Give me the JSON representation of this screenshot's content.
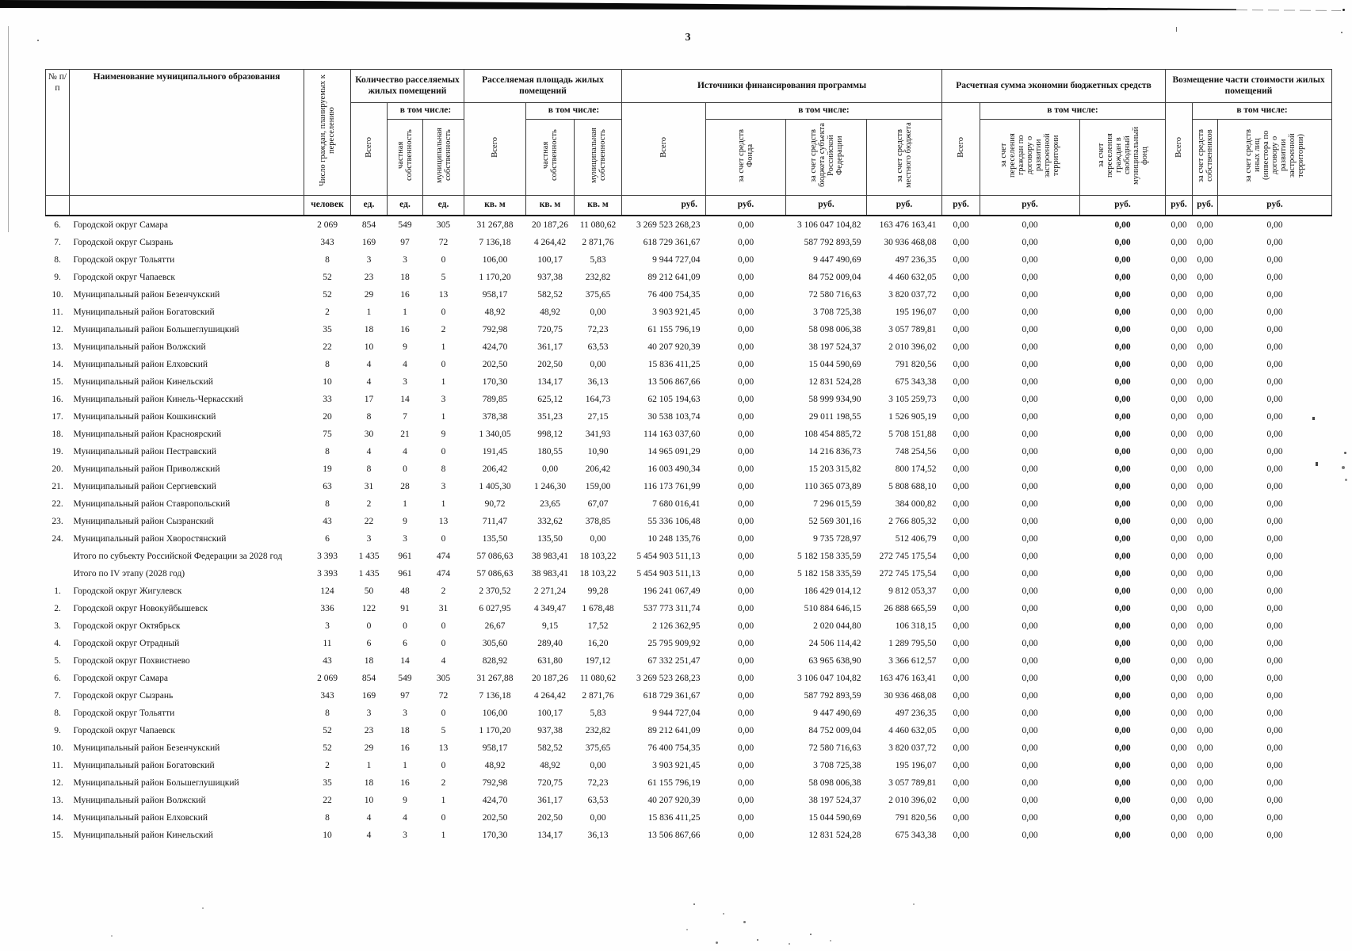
{
  "page": {
    "number": "3"
  },
  "table": {
    "header": {
      "num": "№ п/п",
      "name": "Наименование муниципального образования",
      "people": "Число граждан, планируемых к переселению",
      "incl": "в том числе:",
      "total": "Всего",
      "groups": {
        "units": {
          "label": "Количество расселяемых жилых помещений",
          "private": "частная собственность",
          "municipal": "муниципальная собственность"
        },
        "area": {
          "label": "Расселяемая площадь жилых помещений",
          "private": "частная собственность",
          "municipal": "муниципальная собственность"
        },
        "financing": {
          "label": "Источники финансирования программы",
          "fund": "за счет средств Фонда",
          "subject": "за счет средств бюджета субъекта Российской Федерации",
          "local": "за счет средств местного бюджета"
        },
        "savings": {
          "label": "Расчетная сумма экономии бюджетных средств",
          "contract": "за счет переселения граждан по договору о развитии застроенной территории",
          "free": "за счет переселения граждан в свободный муниципальный фонд"
        },
        "compensation": {
          "label": "Возмещение части стоимости жилых помещений",
          "owners": "за счет средств собственников",
          "others": "за счет средств иных лиц (инвестора по договору о развитии застроенной территории)"
        }
      },
      "units_row": [
        "человек",
        "ед.",
        "ед.",
        "ед.",
        "кв. м",
        "кв. м",
        "кв. м",
        "руб.",
        "руб.",
        "руб.",
        "руб.",
        "руб.",
        "руб.",
        "руб.",
        "руб.",
        "руб.",
        "руб."
      ]
    },
    "rows": [
      {
        "n": "6.",
        "name": "Городской округ Самара",
        "v": [
          "2 069",
          "854",
          "549",
          "305",
          "31 267,88",
          "20 187,26",
          "11 080,62",
          "3 269 523 268,23",
          "0,00",
          "3 106 047 104,82",
          "163 476 163,41",
          "0,00",
          "0,00",
          "0,00",
          "0,00",
          "0,00",
          "0,00"
        ]
      },
      {
        "n": "7.",
        "name": "Городской округ  Сызрань",
        "v": [
          "343",
          "169",
          "97",
          "72",
          "7 136,18",
          "4 264,42",
          "2 871,76",
          "618 729 361,67",
          "0,00",
          "587 792 893,59",
          "30 936 468,08",
          "0,00",
          "0,00",
          "0,00",
          "0,00",
          "0,00",
          "0,00"
        ]
      },
      {
        "n": "8.",
        "name": "Городской округ Тольятти",
        "v": [
          "8",
          "3",
          "3",
          "0",
          "106,00",
          "100,17",
          "5,83",
          "9 944 727,04",
          "0,00",
          "9 447 490,69",
          "497 236,35",
          "0,00",
          "0,00",
          "0,00",
          "0,00",
          "0,00",
          "0,00"
        ]
      },
      {
        "n": "9.",
        "name": "Городской округ  Чапаевск",
        "v": [
          "52",
          "23",
          "18",
          "5",
          "1 170,20",
          "937,38",
          "232,82",
          "89 212 641,09",
          "0,00",
          "84 752 009,04",
          "4 460 632,05",
          "0,00",
          "0,00",
          "0,00",
          "0,00",
          "0,00",
          "0,00"
        ]
      },
      {
        "n": "10.",
        "name": "Муниципальный район Безенчукский",
        "v": [
          "52",
          "29",
          "16",
          "13",
          "958,17",
          "582,52",
          "375,65",
          "76 400 754,35",
          "0,00",
          "72 580 716,63",
          "3 820 037,72",
          "0,00",
          "0,00",
          "0,00",
          "0,00",
          "0,00",
          "0,00"
        ]
      },
      {
        "n": "11.",
        "name": "Муниципальный район Богатовский",
        "v": [
          "2",
          "1",
          "1",
          "0",
          "48,92",
          "48,92",
          "0,00",
          "3 903 921,45",
          "0,00",
          "3 708 725,38",
          "195 196,07",
          "0,00",
          "0,00",
          "0,00",
          "0,00",
          "0,00",
          "0,00"
        ]
      },
      {
        "n": "12.",
        "name": "Муниципальный район Большеглушицкий",
        "v": [
          "35",
          "18",
          "16",
          "2",
          "792,98",
          "720,75",
          "72,23",
          "61 155 796,19",
          "0,00",
          "58 098 006,38",
          "3 057 789,81",
          "0,00",
          "0,00",
          "0,00",
          "0,00",
          "0,00",
          "0,00"
        ]
      },
      {
        "n": "13.",
        "name": "Муниципальный район Волжский",
        "v": [
          "22",
          "10",
          "9",
          "1",
          "424,70",
          "361,17",
          "63,53",
          "40 207 920,39",
          "0,00",
          "38 197 524,37",
          "2 010 396,02",
          "0,00",
          "0,00",
          "0,00",
          "0,00",
          "0,00",
          "0,00"
        ]
      },
      {
        "n": "14.",
        "name": "Муниципальный район Елховский",
        "v": [
          "8",
          "4",
          "4",
          "0",
          "202,50",
          "202,50",
          "0,00",
          "15 836 411,25",
          "0,00",
          "15 044 590,69",
          "791 820,56",
          "0,00",
          "0,00",
          "0,00",
          "0,00",
          "0,00",
          "0,00"
        ]
      },
      {
        "n": "15.",
        "name": "Муниципальный район Кинельский",
        "v": [
          "10",
          "4",
          "3",
          "1",
          "170,30",
          "134,17",
          "36,13",
          "13 506 867,66",
          "0,00",
          "12 831 524,28",
          "675 343,38",
          "0,00",
          "0,00",
          "0,00",
          "0,00",
          "0,00",
          "0,00"
        ]
      },
      {
        "n": "16.",
        "name": "Муниципальный район Кинель-Черкасский",
        "v": [
          "33",
          "17",
          "14",
          "3",
          "789,85",
          "625,12",
          "164,73",
          "62 105 194,63",
          "0,00",
          "58 999 934,90",
          "3 105 259,73",
          "0,00",
          "0,00",
          "0,00",
          "0,00",
          "0,00",
          "0,00"
        ]
      },
      {
        "n": "17.",
        "name": "Муниципальный район Кошкинский",
        "v": [
          "20",
          "8",
          "7",
          "1",
          "378,38",
          "351,23",
          "27,15",
          "30 538 103,74",
          "0,00",
          "29 011 198,55",
          "1 526 905,19",
          "0,00",
          "0,00",
          "0,00",
          "0,00",
          "0,00",
          "0,00"
        ]
      },
      {
        "n": "18.",
        "name": "Муниципальный район Красноярский",
        "v": [
          "75",
          "30",
          "21",
          "9",
          "1 340,05",
          "998,12",
          "341,93",
          "114 163 037,60",
          "0,00",
          "108 454 885,72",
          "5 708 151,88",
          "0,00",
          "0,00",
          "0,00",
          "0,00",
          "0,00",
          "0,00"
        ]
      },
      {
        "n": "19.",
        "name": "Муниципальный район Пестравский",
        "v": [
          "8",
          "4",
          "4",
          "0",
          "191,45",
          "180,55",
          "10,90",
          "14 965 091,29",
          "0,00",
          "14 216 836,73",
          "748 254,56",
          "0,00",
          "0,00",
          "0,00",
          "0,00",
          "0,00",
          "0,00"
        ]
      },
      {
        "n": "20.",
        "name": "Муниципальный район Приволжский",
        "v": [
          "19",
          "8",
          "0",
          "8",
          "206,42",
          "0,00",
          "206,42",
          "16 003 490,34",
          "0,00",
          "15 203 315,82",
          "800 174,52",
          "0,00",
          "0,00",
          "0,00",
          "0,00",
          "0,00",
          "0,00"
        ]
      },
      {
        "n": "21.",
        "name": "Муниципальный район Сергиевский",
        "v": [
          "63",
          "31",
          "28",
          "3",
          "1 405,30",
          "1 246,30",
          "159,00",
          "116 173 761,99",
          "0,00",
          "110 365 073,89",
          "5 808 688,10",
          "0,00",
          "0,00",
          "0,00",
          "0,00",
          "0,00",
          "0,00"
        ]
      },
      {
        "n": "22.",
        "name": "Муниципальный район Ставропольский",
        "v": [
          "8",
          "2",
          "1",
          "1",
          "90,72",
          "23,65",
          "67,07",
          "7 680 016,41",
          "0,00",
          "7 296 015,59",
          "384 000,82",
          "0,00",
          "0,00",
          "0,00",
          "0,00",
          "0,00",
          "0,00"
        ]
      },
      {
        "n": "23.",
        "name": "Муниципальный район Сызранский",
        "v": [
          "43",
          "22",
          "9",
          "13",
          "711,47",
          "332,62",
          "378,85",
          "55 336 106,48",
          "0,00",
          "52 569 301,16",
          "2 766 805,32",
          "0,00",
          "0,00",
          "0,00",
          "0,00",
          "0,00",
          "0,00"
        ]
      },
      {
        "n": "24.",
        "name": "Муниципальный район Хворостянский",
        "v": [
          "6",
          "3",
          "3",
          "0",
          "135,50",
          "135,50",
          "0,00",
          "10 248 135,76",
          "0,00",
          "9 735 728,97",
          "512 406,79",
          "0,00",
          "0,00",
          "0,00",
          "0,00",
          "0,00",
          "0,00"
        ]
      },
      {
        "n": "",
        "name": "Итого  по субъекту Российской Федерации за 2028 год",
        "v": [
          "3 393",
          "1 435",
          "961",
          "474",
          "57 086,63",
          "38 983,41",
          "18 103,22",
          "5 454 903 511,13",
          "0,00",
          "5 182 158 335,59",
          "272 745 175,54",
          "0,00",
          "0,00",
          "0,00",
          "0,00",
          "0,00",
          "0,00"
        ]
      },
      {
        "n": "",
        "name": "Итого по IV этапу (2028 год)",
        "v": [
          "3 393",
          "1 435",
          "961",
          "474",
          "57 086,63",
          "38 983,41",
          "18 103,22",
          "5 454 903 511,13",
          "0,00",
          "5 182 158 335,59",
          "272 745 175,54",
          "0,00",
          "0,00",
          "0,00",
          "0,00",
          "0,00",
          "0,00"
        ]
      },
      {
        "n": "1.",
        "name": "Городской округ Жигулевск",
        "v": [
          "124",
          "50",
          "48",
          "2",
          "2 370,52",
          "2 271,24",
          "99,28",
          "196 241 067,49",
          "0,00",
          "186 429 014,12",
          "9 812 053,37",
          "0,00",
          "0,00",
          "0,00",
          "0,00",
          "0,00",
          "0,00"
        ]
      },
      {
        "n": "2.",
        "name": "Городской округ  Новокуйбышевск",
        "v": [
          "336",
          "122",
          "91",
          "31",
          "6 027,95",
          "4 349,47",
          "1 678,48",
          "537 773 311,74",
          "0,00",
          "510 884 646,15",
          "26 888 665,59",
          "0,00",
          "0,00",
          "0,00",
          "0,00",
          "0,00",
          "0,00"
        ]
      },
      {
        "n": "3.",
        "name": "Городской округ Октябрьск",
        "v": [
          "3",
          "0",
          "0",
          "0",
          "26,67",
          "9,15",
          "17,52",
          "2 126 362,95",
          "0,00",
          "2 020 044,80",
          "106 318,15",
          "0,00",
          "0,00",
          "0,00",
          "0,00",
          "0,00",
          "0,00"
        ]
      },
      {
        "n": "4.",
        "name": "Городской округ Отрадный",
        "v": [
          "11",
          "6",
          "6",
          "0",
          "305,60",
          "289,40",
          "16,20",
          "25 795 909,92",
          "0,00",
          "24 506 114,42",
          "1 289 795,50",
          "0,00",
          "0,00",
          "0,00",
          "0,00",
          "0,00",
          "0,00"
        ]
      },
      {
        "n": "5.",
        "name": "Городской округ Похвистнево",
        "v": [
          "43",
          "18",
          "14",
          "4",
          "828,92",
          "631,80",
          "197,12",
          "67 332 251,47",
          "0,00",
          "63 965 638,90",
          "3 366 612,57",
          "0,00",
          "0,00",
          "0,00",
          "0,00",
          "0,00",
          "0,00"
        ]
      },
      {
        "n": "6.",
        "name": "Городской округ Самара",
        "v": [
          "2 069",
          "854",
          "549",
          "305",
          "31 267,88",
          "20 187,26",
          "11 080,62",
          "3 269 523 268,23",
          "0,00",
          "3 106 047 104,82",
          "163 476 163,41",
          "0,00",
          "0,00",
          "0,00",
          "0,00",
          "0,00",
          "0,00"
        ]
      },
      {
        "n": "7.",
        "name": "Городской округ  Сызрань",
        "v": [
          "343",
          "169",
          "97",
          "72",
          "7 136,18",
          "4 264,42",
          "2 871,76",
          "618 729 361,67",
          "0,00",
          "587 792 893,59",
          "30 936 468,08",
          "0,00",
          "0,00",
          "0,00",
          "0,00",
          "0,00",
          "0,00"
        ]
      },
      {
        "n": "8.",
        "name": "Городской округ Тольятти",
        "v": [
          "8",
          "3",
          "3",
          "0",
          "106,00",
          "100,17",
          "5,83",
          "9 944 727,04",
          "0,00",
          "9 447 490,69",
          "497 236,35",
          "0,00",
          "0,00",
          "0,00",
          "0,00",
          "0,00",
          "0,00"
        ]
      },
      {
        "n": "9.",
        "name": "Городской округ  Чапаевск",
        "v": [
          "52",
          "23",
          "18",
          "5",
          "1 170,20",
          "937,38",
          "232,82",
          "89 212 641,09",
          "0,00",
          "84 752 009,04",
          "4 460 632,05",
          "0,00",
          "0,00",
          "0,00",
          "0,00",
          "0,00",
          "0,00"
        ]
      },
      {
        "n": "10.",
        "name": "Муниципальный район Безенчукский",
        "v": [
          "52",
          "29",
          "16",
          "13",
          "958,17",
          "582,52",
          "375,65",
          "76 400 754,35",
          "0,00",
          "72 580 716,63",
          "3 820 037,72",
          "0,00",
          "0,00",
          "0,00",
          "0,00",
          "0,00",
          "0,00"
        ]
      },
      {
        "n": "11.",
        "name": "Муниципальный район Богатовский",
        "v": [
          "2",
          "1",
          "1",
          "0",
          "48,92",
          "48,92",
          "0,00",
          "3 903 921,45",
          "0,00",
          "3 708 725,38",
          "195 196,07",
          "0,00",
          "0,00",
          "0,00",
          "0,00",
          "0,00",
          "0,00"
        ]
      },
      {
        "n": "12.",
        "name": "Муниципальный район Большеглушицкий",
        "v": [
          "35",
          "18",
          "16",
          "2",
          "792,98",
          "720,75",
          "72,23",
          "61 155 796,19",
          "0,00",
          "58 098 006,38",
          "3 057 789,81",
          "0,00",
          "0,00",
          "0,00",
          "0,00",
          "0,00",
          "0,00"
        ]
      },
      {
        "n": "13.",
        "name": "Муниципальный район Волжский",
        "v": [
          "22",
          "10",
          "9",
          "1",
          "424,70",
          "361,17",
          "63,53",
          "40 207 920,39",
          "0,00",
          "38 197 524,37",
          "2 010 396,02",
          "0,00",
          "0,00",
          "0,00",
          "0,00",
          "0,00",
          "0,00"
        ]
      },
      {
        "n": "14.",
        "name": "Муниципальный район Елховский",
        "v": [
          "8",
          "4",
          "4",
          "0",
          "202,50",
          "202,50",
          "0,00",
          "15 836 411,25",
          "0,00",
          "15 044 590,69",
          "791 820,56",
          "0,00",
          "0,00",
          "0,00",
          "0,00",
          "0,00",
          "0,00"
        ]
      },
      {
        "n": "15.",
        "name": "Муниципальный район Кинельский",
        "v": [
          "10",
          "4",
          "3",
          "1",
          "170,30",
          "134,17",
          "36,13",
          "13 506 867,66",
          "0,00",
          "12 831 524,28",
          "675 343,38",
          "0,00",
          "0,00",
          "0,00",
          "0,00",
          "0,00",
          "0,00"
        ]
      }
    ]
  }
}
